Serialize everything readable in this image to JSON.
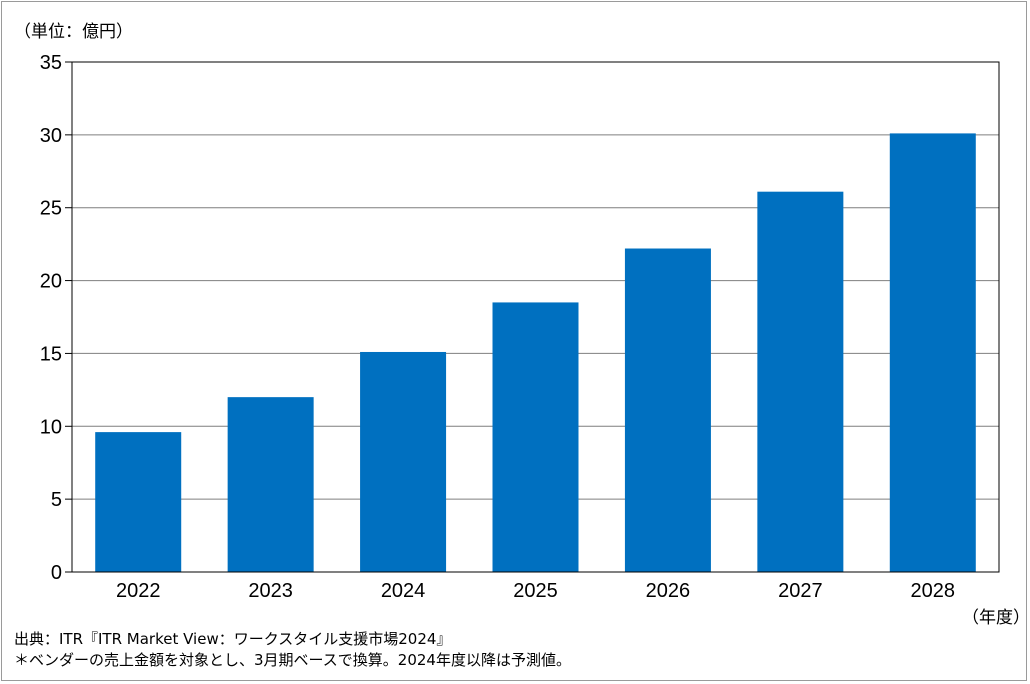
{
  "chart_data": {
    "type": "bar",
    "unit_label": "（単位：億円）",
    "xunit_label": "（年度）",
    "categories": [
      "2022",
      "2023",
      "2024",
      "2025",
      "2026",
      "2027",
      "2028"
    ],
    "values": [
      9.6,
      12.0,
      15.1,
      18.5,
      22.2,
      26.1,
      30.1
    ],
    "ylim": [
      0,
      35
    ],
    "yticks": [
      "0",
      "5",
      "10",
      "15",
      "20",
      "25",
      "30",
      "35"
    ],
    "grid": true,
    "bar_color": "#0070c0"
  },
  "footer": {
    "source": "出典：ITR『ITR Market View：ワークスタイル支援市場2024』",
    "note": "＊ベンダーの売上金額を対象とし、3月期ベースで換算。2024年度以降は予測値。"
  }
}
